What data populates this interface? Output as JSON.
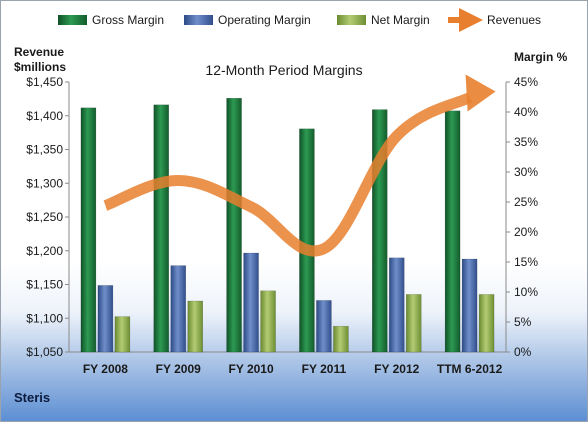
{
  "company": "Steris",
  "chart_data": {
    "type": "bar",
    "title": "12-Month Period Margins",
    "y_left_label_line1": "Revenue",
    "y_left_label_line2": "$millions",
    "y_right_label": "Margin %",
    "categories": [
      "FY 2008",
      "FY 2009",
      "FY 2010",
      "FY 2011",
      "FY 2012",
      "TTM 6-2012"
    ],
    "y_left_ticks": [
      "$1,050",
      "$1,100",
      "$1,150",
      "$1,200",
      "$1,250",
      "$1,300",
      "$1,350",
      "$1,400",
      "$1,450"
    ],
    "y_right_ticks": [
      "0%",
      "5%",
      "10%",
      "15%",
      "20%",
      "25%",
      "30%",
      "35%",
      "40%",
      "45%"
    ],
    "ylim_left": [
      1050,
      1450
    ],
    "ylim_right": [
      0,
      45
    ],
    "grid": false,
    "legend_position": "top",
    "series": [
      {
        "name": "Gross Margin",
        "type": "bar",
        "axis": "right",
        "color": "#1e7a3d",
        "values": [
          40.7,
          41.2,
          42.3,
          37.2,
          40.4,
          40.2
        ]
      },
      {
        "name": "Operating Margin",
        "type": "bar",
        "axis": "right",
        "color": "#4a6aa8",
        "values": [
          11.1,
          14.4,
          16.5,
          8.6,
          15.7,
          15.5
        ]
      },
      {
        "name": "Net Margin",
        "type": "bar",
        "axis": "right",
        "color": "#8fae4c",
        "values": [
          5.9,
          8.5,
          10.2,
          4.3,
          9.6,
          9.6
        ]
      },
      {
        "name": "Revenues",
        "type": "line",
        "axis": "left",
        "color": "#e87f2e",
        "values": [
          1267,
          1304,
          1265,
          1203,
          1370,
          1427
        ]
      }
    ]
  }
}
